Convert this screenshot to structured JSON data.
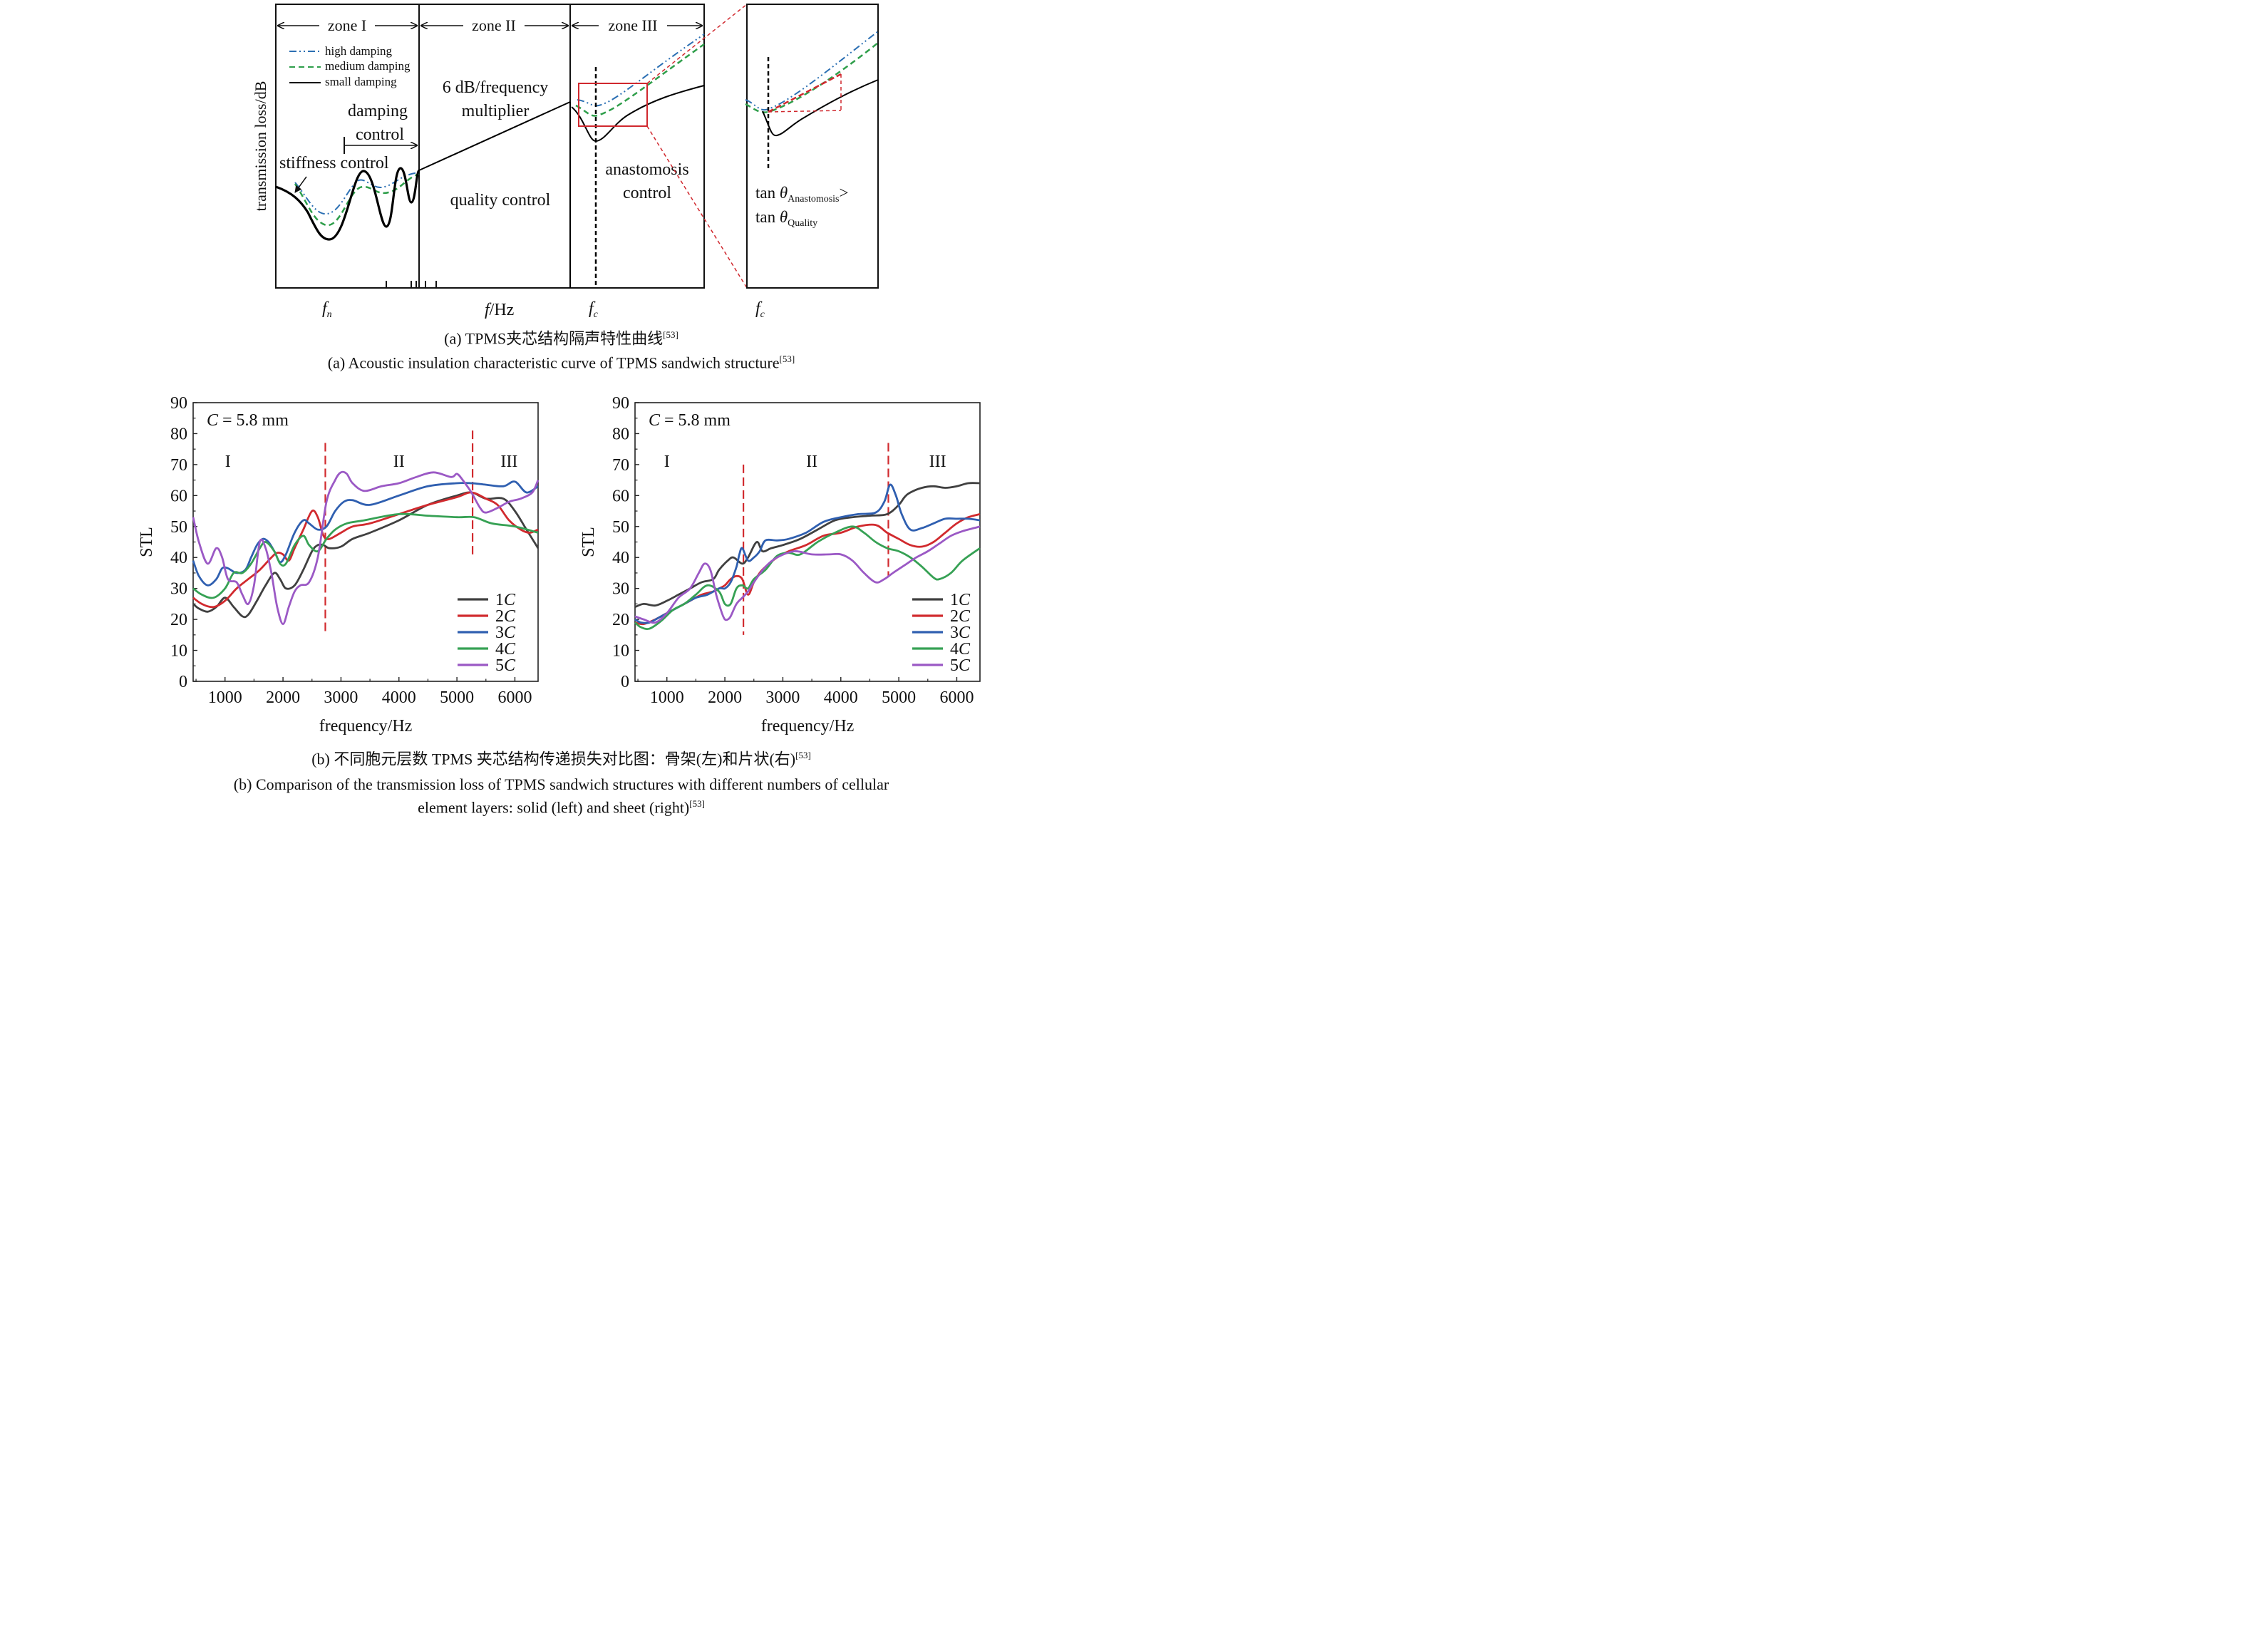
{
  "figure_a": {
    "ylabel": "transmission loss/dB",
    "xlabel_f": "f",
    "xlabel_unit": "/Hz",
    "fn_label": "f",
    "fn_sub": "n",
    "fc_label": "f",
    "fc_sub": "c",
    "zones": [
      "zone I",
      "zone II",
      "zone III"
    ],
    "legend": [
      "high damping",
      "medium damping",
      "small damping"
    ],
    "annotations": {
      "damping_control_1": "damping",
      "damping_control_2": "control",
      "stiffness_control": "stiffness control",
      "six_db_1": "6 dB/frequency",
      "six_db_2": "multiplier",
      "quality_control": "quality control",
      "anastomosis_1": "anastomosis",
      "anastomosis_2": "control"
    },
    "inset": {
      "tan": "tan ",
      "theta": "θ",
      "sub_anastomosis": "Anastomosis",
      "gt": ">",
      "sub_quality": "Quality"
    },
    "colors": {
      "high": "#2b6fb3",
      "medium": "#2e9e4a",
      "small": "#000000",
      "red": "#d0282e"
    }
  },
  "captions": {
    "a_zh_prefix": "(a) TPMS夹芯结构隔声特性曲线",
    "a_en_prefix": "(a) Acoustic insulation characteristic curve of TPMS sandwich structure",
    "ref": "[53]",
    "b_zh_prefix": "(b) 不同胞元层数 TPMS 夹芯结构传递损失对比图：骨架(左)和片状(右)",
    "b_en_line1": "(b) Comparison of the transmission loss of TPMS sandwich structures with different numbers of cellular",
    "b_en_line2_prefix": "element layers: solid (left) and sheet (right)"
  },
  "chart_data": [
    {
      "type": "line",
      "annotation": "C = 5.8 mm",
      "xlabel": "frequency/Hz",
      "ylabel": "STL",
      "xlim": [
        450,
        6400
      ],
      "ylim": [
        0,
        90
      ],
      "xticks": [
        1000,
        2000,
        3000,
        4000,
        5000,
        6000
      ],
      "yticks": [
        0,
        10,
        20,
        30,
        40,
        50,
        60,
        70,
        80,
        90
      ],
      "grid": false,
      "legend_position": "bottom-right",
      "regions": [
        {
          "label": "I",
          "x": 1050
        },
        {
          "label": "II",
          "x": 4000
        },
        {
          "label": "III",
          "x": 5900
        }
      ],
      "dividers": [
        {
          "x": 2730,
          "ylim": [
            16,
            77
          ]
        },
        {
          "x": 5270,
          "ylim": [
            41,
            81
          ]
        }
      ],
      "series": [
        {
          "name": "1C",
          "color": "#404040",
          "x": [
            450,
            550,
            700,
            850,
            1000,
            1150,
            1300,
            1400,
            1550,
            1700,
            1850,
            1950,
            2050,
            2200,
            2350,
            2500,
            2600,
            2700,
            2800,
            3000,
            3200,
            3500,
            4000,
            4500,
            5000,
            5250,
            5500,
            5800,
            6000,
            6200,
            6400
          ],
          "y": [
            25,
            23.5,
            22.5,
            24,
            27,
            24,
            21,
            21.5,
            26,
            31,
            35,
            33,
            30,
            31,
            36,
            42,
            44,
            44,
            43,
            43.5,
            46,
            48,
            52,
            57,
            60,
            61,
            59,
            59,
            55,
            49,
            43
          ]
        },
        {
          "name": "2C",
          "color": "#d12a2e",
          "x": [
            450,
            600,
            800,
            1000,
            1200,
            1400,
            1600,
            1800,
            1900,
            2000,
            2100,
            2200,
            2350,
            2500,
            2600,
            2700,
            2800,
            3000,
            3200,
            3500,
            4000,
            4500,
            5000,
            5250,
            5500,
            5700,
            5900,
            6100,
            6250,
            6400
          ],
          "y": [
            27,
            25,
            24,
            26,
            30,
            33,
            36,
            40,
            41.5,
            41,
            39,
            43,
            49,
            55,
            53,
            47,
            46,
            48,
            50,
            51,
            54,
            57,
            59.5,
            61,
            59,
            57,
            52,
            49,
            48,
            49
          ]
        },
        {
          "name": "3C",
          "color": "#2f5fb0",
          "x": [
            450,
            550,
            700,
            850,
            950,
            1050,
            1200,
            1350,
            1450,
            1550,
            1650,
            1750,
            1850,
            1950,
            2050,
            2200,
            2350,
            2450,
            2600,
            2750,
            2900,
            3050,
            3200,
            3500,
            4000,
            4500,
            5000,
            5250,
            5500,
            5800,
            6000,
            6200,
            6400
          ],
          "y": [
            39,
            34,
            31,
            33,
            36.5,
            36.5,
            35,
            36,
            40,
            44,
            46,
            45,
            42,
            38.5,
            41,
            48,
            52,
            51,
            49,
            50,
            55,
            58,
            58.5,
            57,
            60,
            63,
            64,
            64,
            63.5,
            63,
            64.5,
            61,
            63
          ]
        },
        {
          "name": "4C",
          "color": "#36a154",
          "x": [
            450,
            600,
            800,
            1000,
            1150,
            1300,
            1450,
            1600,
            1700,
            1850,
            1950,
            2050,
            2200,
            2350,
            2450,
            2600,
            2750,
            2900,
            3100,
            3400,
            4000,
            4500,
            5000,
            5300,
            5600,
            6000,
            6400
          ],
          "y": [
            30,
            28,
            27,
            30,
            35,
            35,
            38,
            43,
            45,
            42,
            38,
            38,
            44,
            47,
            44,
            42,
            46,
            49,
            51,
            52,
            54,
            53.5,
            53,
            53,
            51,
            50,
            48
          ]
        },
        {
          "name": "5C",
          "color": "#9b59c5",
          "x": [
            450,
            550,
            700,
            850,
            950,
            1050,
            1200,
            1300,
            1400,
            1500,
            1600,
            1700,
            1800,
            1900,
            2000,
            2100,
            2200,
            2300,
            2450,
            2600,
            2750,
            2900,
            3000,
            3100,
            3200,
            3400,
            3700,
            4000,
            4300,
            4600,
            4900,
            5000,
            5100,
            5250,
            5400,
            5500,
            5700,
            5900,
            6100,
            6300,
            6400
          ],
          "y": [
            53,
            45,
            38,
            43,
            40,
            33,
            32,
            28,
            25,
            31,
            45,
            43,
            35,
            24,
            18.5,
            24,
            29,
            31,
            32,
            40,
            58,
            65,
            67.5,
            67,
            64,
            61.5,
            63,
            64,
            66,
            67.5,
            66,
            67,
            65,
            61,
            56,
            54.5,
            56,
            58,
            59,
            61,
            65
          ]
        }
      ]
    },
    {
      "type": "line",
      "annotation": "C = 5.8 mm",
      "xlabel": "frequency/Hz",
      "ylabel": "STL",
      "xlim": [
        450,
        6400
      ],
      "ylim": [
        0,
        90
      ],
      "xticks": [
        1000,
        2000,
        3000,
        4000,
        5000,
        6000
      ],
      "yticks": [
        0,
        10,
        20,
        30,
        40,
        50,
        60,
        70,
        80,
        90
      ],
      "grid": false,
      "legend_position": "bottom-right",
      "regions": [
        {
          "label": "I",
          "x": 1000
        },
        {
          "label": "II",
          "x": 3500
        },
        {
          "label": "III",
          "x": 5670
        }
      ],
      "dividers": [
        {
          "x": 2320,
          "ylim": [
            15,
            70
          ]
        },
        {
          "x": 4820,
          "ylim": [
            34,
            77
          ]
        }
      ],
      "series": [
        {
          "name": "1C",
          "color": "#404040",
          "x": [
            450,
            600,
            800,
            1000,
            1200,
            1400,
            1600,
            1800,
            1900,
            2050,
            2150,
            2300,
            2400,
            2550,
            2650,
            2800,
            3000,
            3300,
            3600,
            3900,
            4200,
            4500,
            4800,
            5000,
            5100,
            5200,
            5400,
            5600,
            5800,
            6000,
            6200,
            6400
          ],
          "y": [
            24,
            25,
            24.5,
            26,
            28,
            30,
            32,
            33,
            36,
            39,
            40,
            38,
            40,
            45,
            42,
            43,
            44,
            46,
            49,
            52,
            53,
            53.5,
            54,
            57,
            59.5,
            61,
            62.5,
            63,
            62.5,
            63,
            64,
            64
          ]
        },
        {
          "name": "2C",
          "color": "#d12a2e",
          "x": [
            450,
            600,
            800,
            1000,
            1200,
            1400,
            1600,
            1800,
            1900,
            2000,
            2100,
            2200,
            2300,
            2400,
            2500,
            2600,
            2700,
            2900,
            3100,
            3400,
            3700,
            4000,
            4300,
            4600,
            4800,
            5000,
            5200,
            5400,
            5600,
            5800,
            6000,
            6200,
            6400
          ],
          "y": [
            19,
            18.5,
            20,
            22,
            24,
            26,
            28,
            29,
            30,
            31,
            33,
            34,
            33,
            28,
            32,
            35,
            37,
            40,
            42,
            44,
            47,
            48,
            50,
            50.5,
            48,
            46,
            44,
            43.5,
            45,
            48,
            51,
            53,
            54
          ]
        },
        {
          "name": "3C",
          "color": "#2f5fb0",
          "x": [
            450,
            550,
            700,
            900,
            1100,
            1300,
            1500,
            1700,
            1900,
            2000,
            2100,
            2200,
            2250,
            2300,
            2400,
            2500,
            2600,
            2700,
            2900,
            3100,
            3400,
            3700,
            4000,
            4300,
            4600,
            4750,
            4850,
            4950,
            5050,
            5200,
            5400,
            5600,
            5800,
            6000,
            6200,
            6400
          ],
          "y": [
            20,
            19,
            19,
            21,
            23,
            25,
            27,
            28,
            30,
            30,
            32,
            37,
            41,
            43,
            39,
            40,
            42,
            45.5,
            45.5,
            46,
            48,
            51.5,
            53,
            54,
            54.5,
            58,
            63.5,
            60,
            54,
            49,
            49.5,
            51,
            52.5,
            52.5,
            52.5,
            52
          ]
        },
        {
          "name": "4C",
          "color": "#36a154",
          "x": [
            450,
            550,
            700,
            900,
            1100,
            1300,
            1500,
            1700,
            1900,
            2000,
            2100,
            2200,
            2300,
            2400,
            2500,
            2700,
            2900,
            3100,
            3300,
            3600,
            3900,
            4200,
            4400,
            4600,
            4800,
            5000,
            5200,
            5400,
            5600,
            5700,
            5900,
            6100,
            6400
          ],
          "y": [
            19,
            17.5,
            17,
            19.5,
            23,
            25,
            28,
            31,
            29,
            25,
            25,
            30,
            31,
            30,
            33,
            36,
            40.5,
            41.5,
            41,
            45,
            48,
            50,
            48,
            45,
            43,
            42,
            40,
            37,
            33.5,
            33,
            35,
            39,
            43
          ]
        },
        {
          "name": "5C",
          "color": "#9b59c5",
          "x": [
            450,
            600,
            800,
            1000,
            1200,
            1400,
            1550,
            1650,
            1750,
            1850,
            1950,
            2000,
            2050,
            2100,
            2200,
            2300,
            2400,
            2500,
            2700,
            2900,
            3200,
            3500,
            3800,
            4000,
            4200,
            4400,
            4600,
            4750,
            4900,
            5100,
            5300,
            5500,
            5700,
            5900,
            6100,
            6300,
            6400
          ],
          "y": [
            21,
            20,
            19,
            22,
            27,
            30,
            35,
            38,
            36,
            28,
            22,
            20,
            20,
            21,
            25,
            27,
            29,
            32,
            37,
            40,
            42,
            41,
            41,
            41,
            39,
            35,
            32,
            33,
            35,
            37.5,
            40,
            42,
            44.5,
            47,
            48.5,
            49.5,
            50
          ]
        }
      ]
    }
  ]
}
